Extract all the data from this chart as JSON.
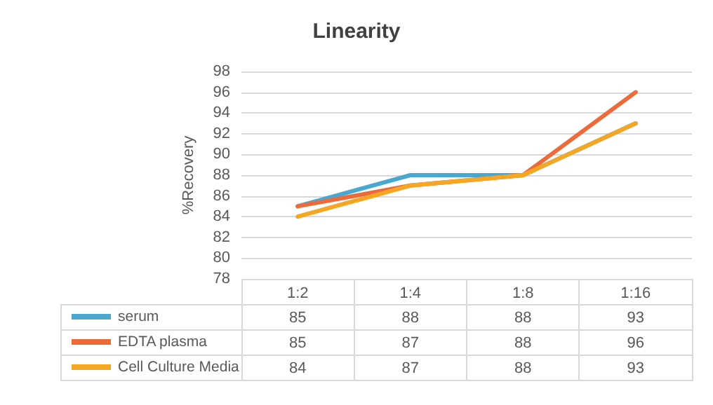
{
  "chart_data": {
    "type": "line",
    "title": "Linearity",
    "ylabel": "%Recovery",
    "categories": [
      "1:2",
      "1:4",
      "1:8",
      "1:16"
    ],
    "series": [
      {
        "name": "serum",
        "color": "#4aa8d0",
        "values": [
          85,
          88,
          88,
          93
        ]
      },
      {
        "name": "EDTA plasma",
        "color": "#ed6a3a",
        "values": [
          85,
          87,
          88,
          96
        ]
      },
      {
        "name": "Cell Culture Media",
        "color": "#f5a623",
        "values": [
          84,
          87,
          88,
          93
        ]
      }
    ],
    "ylim": [
      78,
      98
    ],
    "yticks": [
      78,
      80,
      82,
      84,
      86,
      88,
      90,
      92,
      94,
      96,
      98
    ],
    "grid": "y",
    "legend": "bottom left",
    "marker": "none",
    "line_style": "solid",
    "data_labels": true
  }
}
